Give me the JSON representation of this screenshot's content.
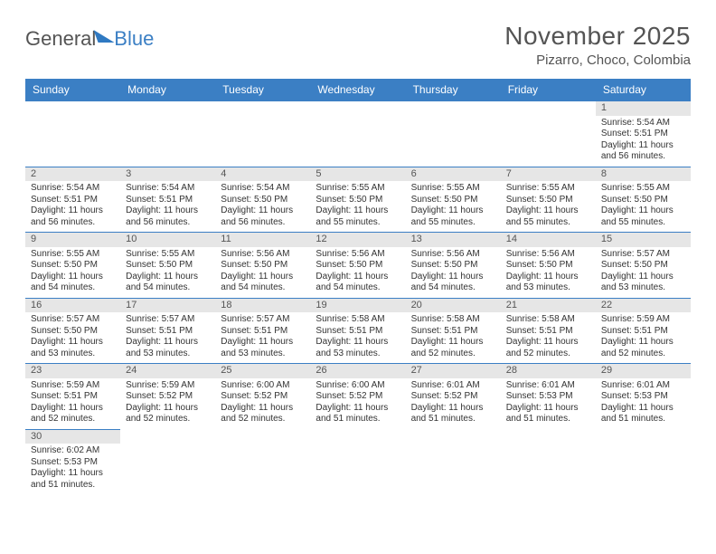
{
  "logo": {
    "general": "General",
    "blue": "Blue"
  },
  "title": "November 2025",
  "location": "Pizarro, Choco, Colombia",
  "colors": {
    "header_bg": "#3b7fc4",
    "header_text": "#ffffff",
    "daynum_bg": "#e6e6e6",
    "border": "#3b7fc4",
    "text": "#333333",
    "title_text": "#545454"
  },
  "weekdays": [
    "Sunday",
    "Monday",
    "Tuesday",
    "Wednesday",
    "Thursday",
    "Friday",
    "Saturday"
  ],
  "weeks": [
    [
      null,
      null,
      null,
      null,
      null,
      null,
      {
        "n": "1",
        "sr": "5:54 AM",
        "ss": "5:51 PM",
        "dl": "11 hours and 56 minutes."
      }
    ],
    [
      {
        "n": "2",
        "sr": "5:54 AM",
        "ss": "5:51 PM",
        "dl": "11 hours and 56 minutes."
      },
      {
        "n": "3",
        "sr": "5:54 AM",
        "ss": "5:51 PM",
        "dl": "11 hours and 56 minutes."
      },
      {
        "n": "4",
        "sr": "5:54 AM",
        "ss": "5:50 PM",
        "dl": "11 hours and 56 minutes."
      },
      {
        "n": "5",
        "sr": "5:55 AM",
        "ss": "5:50 PM",
        "dl": "11 hours and 55 minutes."
      },
      {
        "n": "6",
        "sr": "5:55 AM",
        "ss": "5:50 PM",
        "dl": "11 hours and 55 minutes."
      },
      {
        "n": "7",
        "sr": "5:55 AM",
        "ss": "5:50 PM",
        "dl": "11 hours and 55 minutes."
      },
      {
        "n": "8",
        "sr": "5:55 AM",
        "ss": "5:50 PM",
        "dl": "11 hours and 55 minutes."
      }
    ],
    [
      {
        "n": "9",
        "sr": "5:55 AM",
        "ss": "5:50 PM",
        "dl": "11 hours and 54 minutes."
      },
      {
        "n": "10",
        "sr": "5:55 AM",
        "ss": "5:50 PM",
        "dl": "11 hours and 54 minutes."
      },
      {
        "n": "11",
        "sr": "5:56 AM",
        "ss": "5:50 PM",
        "dl": "11 hours and 54 minutes."
      },
      {
        "n": "12",
        "sr": "5:56 AM",
        "ss": "5:50 PM",
        "dl": "11 hours and 54 minutes."
      },
      {
        "n": "13",
        "sr": "5:56 AM",
        "ss": "5:50 PM",
        "dl": "11 hours and 54 minutes."
      },
      {
        "n": "14",
        "sr": "5:56 AM",
        "ss": "5:50 PM",
        "dl": "11 hours and 53 minutes."
      },
      {
        "n": "15",
        "sr": "5:57 AM",
        "ss": "5:50 PM",
        "dl": "11 hours and 53 minutes."
      }
    ],
    [
      {
        "n": "16",
        "sr": "5:57 AM",
        "ss": "5:50 PM",
        "dl": "11 hours and 53 minutes."
      },
      {
        "n": "17",
        "sr": "5:57 AM",
        "ss": "5:51 PM",
        "dl": "11 hours and 53 minutes."
      },
      {
        "n": "18",
        "sr": "5:57 AM",
        "ss": "5:51 PM",
        "dl": "11 hours and 53 minutes."
      },
      {
        "n": "19",
        "sr": "5:58 AM",
        "ss": "5:51 PM",
        "dl": "11 hours and 53 minutes."
      },
      {
        "n": "20",
        "sr": "5:58 AM",
        "ss": "5:51 PM",
        "dl": "11 hours and 52 minutes."
      },
      {
        "n": "21",
        "sr": "5:58 AM",
        "ss": "5:51 PM",
        "dl": "11 hours and 52 minutes."
      },
      {
        "n": "22",
        "sr": "5:59 AM",
        "ss": "5:51 PM",
        "dl": "11 hours and 52 minutes."
      }
    ],
    [
      {
        "n": "23",
        "sr": "5:59 AM",
        "ss": "5:51 PM",
        "dl": "11 hours and 52 minutes."
      },
      {
        "n": "24",
        "sr": "5:59 AM",
        "ss": "5:52 PM",
        "dl": "11 hours and 52 minutes."
      },
      {
        "n": "25",
        "sr": "6:00 AM",
        "ss": "5:52 PM",
        "dl": "11 hours and 52 minutes."
      },
      {
        "n": "26",
        "sr": "6:00 AM",
        "ss": "5:52 PM",
        "dl": "11 hours and 51 minutes."
      },
      {
        "n": "27",
        "sr": "6:01 AM",
        "ss": "5:52 PM",
        "dl": "11 hours and 51 minutes."
      },
      {
        "n": "28",
        "sr": "6:01 AM",
        "ss": "5:53 PM",
        "dl": "11 hours and 51 minutes."
      },
      {
        "n": "29",
        "sr": "6:01 AM",
        "ss": "5:53 PM",
        "dl": "11 hours and 51 minutes."
      }
    ],
    [
      {
        "n": "30",
        "sr": "6:02 AM",
        "ss": "5:53 PM",
        "dl": "11 hours and 51 minutes."
      },
      null,
      null,
      null,
      null,
      null,
      null
    ]
  ]
}
